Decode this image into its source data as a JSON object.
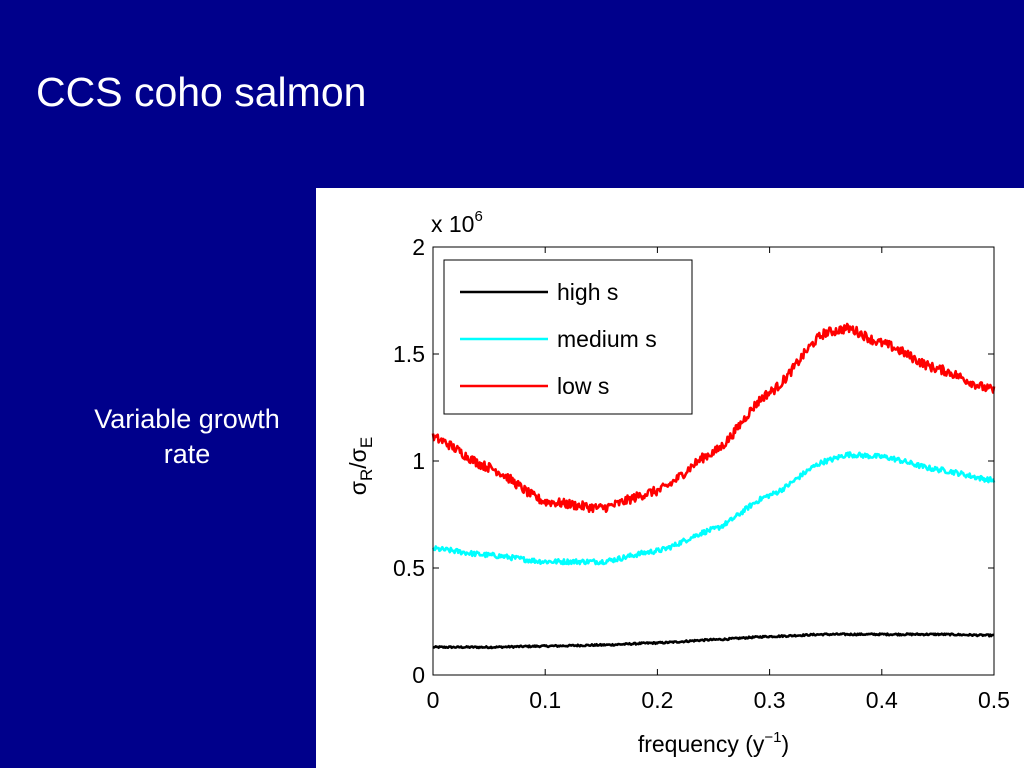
{
  "slide": {
    "title": "CCS coho salmon",
    "caption_line1": "Variable growth",
    "caption_line2": "rate"
  },
  "chart_data": {
    "type": "line",
    "exponent_label": {
      "base": "x 10",
      "power": "6"
    },
    "ylabel": {
      "s1": "σ",
      "sub1": "R",
      "slash": "/",
      "s2": "σ",
      "sub2": "E"
    },
    "xlabel": {
      "text": "frequency (y",
      "sup": "−1",
      "close": ")"
    },
    "xlim": [
      0,
      0.5
    ],
    "ylim": [
      0,
      2
    ],
    "xticks": [
      0,
      0.1,
      0.2,
      0.3,
      0.4,
      0.5
    ],
    "yticks": [
      0,
      0.5,
      1,
      1.5,
      2
    ],
    "xtick_labels": [
      "0",
      "0.1",
      "0.2",
      "0.3",
      "0.4",
      "0.5"
    ],
    "ytick_labels": [
      "0",
      "0.5",
      "1",
      "1.5",
      "2"
    ],
    "legend_position": "top-left",
    "grid": false,
    "series": [
      {
        "name": "high s",
        "color": "#000000",
        "noise": 0.004,
        "x": [
          0,
          0.05,
          0.1,
          0.15,
          0.2,
          0.25,
          0.3,
          0.35,
          0.4,
          0.45,
          0.5
        ],
        "y": [
          0.13,
          0.13,
          0.135,
          0.14,
          0.15,
          0.165,
          0.18,
          0.19,
          0.19,
          0.19,
          0.185
        ]
      },
      {
        "name": "medium s",
        "color": "#00ffff",
        "noise": 0.012,
        "x": [
          0,
          0.05,
          0.1,
          0.15,
          0.2,
          0.25,
          0.3,
          0.35,
          0.37,
          0.4,
          0.45,
          0.5
        ],
        "y": [
          0.59,
          0.56,
          0.53,
          0.53,
          0.58,
          0.68,
          0.84,
          1.0,
          1.03,
          1.02,
          0.96,
          0.91
        ]
      },
      {
        "name": "low s",
        "color": "#ff0000",
        "noise": 0.022,
        "x": [
          0,
          0.05,
          0.1,
          0.15,
          0.2,
          0.25,
          0.3,
          0.35,
          0.37,
          0.4,
          0.45,
          0.5
        ],
        "y": [
          1.11,
          0.97,
          0.81,
          0.78,
          0.86,
          1.04,
          1.32,
          1.6,
          1.62,
          1.55,
          1.43,
          1.33
        ]
      }
    ]
  }
}
